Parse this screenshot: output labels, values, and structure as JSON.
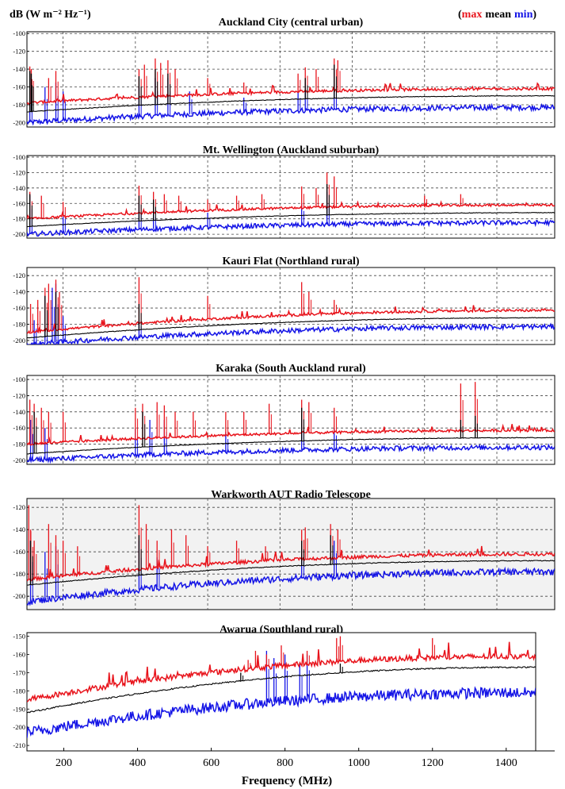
{
  "header": {
    "units": "dB (W m⁻² Hz⁻¹)",
    "legend": {
      "open": "(",
      "max": "max",
      "mean": "mean",
      "min": "min",
      "close": ")"
    },
    "colors": {
      "max": "#e8141c",
      "mean": "#000000",
      "min": "#1414e6"
    }
  },
  "chart_data": [
    {
      "type": "line",
      "title": "Auckland City (central urban)",
      "xlim": [
        100,
        1560
      ],
      "ylim": [
        -205,
        -98
      ],
      "yticks": [
        -100,
        -120,
        -140,
        -160,
        -180,
        -200
      ],
      "grid": true,
      "series": [
        {
          "name": "max",
          "start": -178,
          "end": -162,
          "spikes": [
            [
              108,
              -137
            ],
            [
              112,
              -140
            ],
            [
              160,
              -150
            ],
            [
              180,
              -142
            ],
            [
              410,
              -140
            ],
            [
              425,
              -135
            ],
            [
              455,
              -128
            ],
            [
              470,
              -133
            ],
            [
              490,
              -130
            ],
            [
              510,
              -140
            ],
            [
              600,
              -150
            ],
            [
              700,
              -155
            ],
            [
              850,
              -145
            ],
            [
              870,
              -138
            ],
            [
              900,
              -140
            ],
            [
              950,
              -128
            ],
            [
              960,
              -130
            ]
          ]
        },
        {
          "name": "mean",
          "start": -188,
          "end": -170,
          "spikes": [
            [
              108,
              -142
            ],
            [
              112,
              -145
            ],
            [
              410,
              -148
            ],
            [
              455,
              -140
            ],
            [
              490,
              -145
            ],
            [
              870,
              -150
            ],
            [
              950,
              -135
            ]
          ]
        },
        {
          "name": "min",
          "start": -200,
          "end": -183,
          "spikes": [
            [
              108,
              -150
            ],
            [
              150,
              -160
            ],
            [
              180,
              -155
            ],
            [
              200,
              -165
            ],
            [
              410,
              -160
            ],
            [
              455,
              -150
            ],
            [
              490,
              -150
            ],
            [
              550,
              -165
            ],
            [
              700,
              -172
            ],
            [
              850,
              -165
            ],
            [
              870,
              -155
            ],
            [
              950,
              -140
            ]
          ]
        }
      ]
    },
    {
      "type": "line",
      "title": "Mt. Wellington (Auckland suburban)",
      "xlim": [
        100,
        1560
      ],
      "ylim": [
        -205,
        -98
      ],
      "yticks": [
        -100,
        -120,
        -140,
        -160,
        -180,
        -200
      ],
      "grid": true,
      "series": [
        {
          "name": "max",
          "start": -180,
          "end": -162,
          "spikes": [
            [
              108,
              -145
            ],
            [
              140,
              -150
            ],
            [
              200,
              -158
            ],
            [
              410,
              -137
            ],
            [
              450,
              -145
            ],
            [
              480,
              -148
            ],
            [
              520,
              -150
            ],
            [
              600,
              -155
            ],
            [
              680,
              -150
            ],
            [
              750,
              -148
            ],
            [
              860,
              -138
            ],
            [
              900,
              -140
            ],
            [
              930,
              -120
            ],
            [
              950,
              -125
            ],
            [
              1200,
              -150
            ],
            [
              1300,
              -148
            ]
          ]
        },
        {
          "name": "mean",
          "start": -190,
          "end": -172,
          "spikes": [
            [
              108,
              -148
            ],
            [
              410,
              -150
            ],
            [
              450,
              -155
            ],
            [
              930,
              -135
            ]
          ]
        },
        {
          "name": "min",
          "start": -200,
          "end": -185,
          "spikes": [
            [
              108,
              -150
            ],
            [
              200,
              -170
            ],
            [
              410,
              -160
            ],
            [
              450,
              -170
            ],
            [
              600,
              -172
            ],
            [
              860,
              -160
            ],
            [
              930,
              -145
            ]
          ]
        }
      ]
    },
    {
      "type": "line",
      "title": "Kauri Flat (Northland rural)",
      "xlim": [
        100,
        1560
      ],
      "ylim": [
        -205,
        -110
      ],
      "yticks": [
        -120,
        -140,
        -160,
        -180,
        -200
      ],
      "grid": true,
      "series": [
        {
          "name": "max",
          "start": -190,
          "end": -163,
          "spikes": [
            [
              110,
              -155
            ],
            [
              130,
              -150
            ],
            [
              150,
              -135
            ],
            [
              160,
              -130
            ],
            [
              180,
              -125
            ],
            [
              190,
              -140
            ],
            [
              410,
              -122
            ],
            [
              600,
              -145
            ],
            [
              860,
              -128
            ],
            [
              880,
              -140
            ],
            [
              950,
              -150
            ]
          ]
        },
        {
          "name": "mean",
          "start": -197,
          "end": -172,
          "spikes": [
            [
              150,
              -145
            ],
            [
              180,
              -140
            ],
            [
              410,
              -155
            ]
          ]
        },
        {
          "name": "min",
          "start": -205,
          "end": -183,
          "spikes": [
            [
              120,
              -175
            ],
            [
              150,
              -145
            ],
            [
              170,
              -135
            ],
            [
              180,
              -130
            ],
            [
              200,
              -170
            ],
            [
              410,
              -175
            ]
          ]
        }
      ]
    },
    {
      "type": "line",
      "title": "Karaka (South Auckland rural)",
      "xlim": [
        100,
        1560
      ],
      "ylim": [
        -205,
        -95
      ],
      "yticks": [
        -100,
        -120,
        -140,
        -160,
        -180,
        -200
      ],
      "grid": true,
      "series": [
        {
          "name": "max",
          "start": -180,
          "end": -163,
          "spikes": [
            [
              108,
              -125
            ],
            [
              120,
              -130
            ],
            [
              140,
              -135
            ],
            [
              160,
              -140
            ],
            [
              200,
              -140
            ],
            [
              400,
              -135
            ],
            [
              420,
              -130
            ],
            [
              460,
              -128
            ],
            [
              480,
              -132
            ],
            [
              510,
              -140
            ],
            [
              560,
              -140
            ],
            [
              650,
              -140
            ],
            [
              700,
              -140
            ],
            [
              770,
              -130
            ],
            [
              860,
              -125
            ],
            [
              880,
              -128
            ],
            [
              950,
              -135
            ],
            [
              1300,
              -105
            ],
            [
              1340,
              -103
            ]
          ]
        },
        {
          "name": "mean",
          "start": -192,
          "end": -172,
          "spikes": [
            [
              120,
              -140
            ],
            [
              420,
              -140
            ],
            [
              860,
              -135
            ],
            [
              1300,
              -150
            ],
            [
              1340,
              -145
            ]
          ]
        },
        {
          "name": "min",
          "start": -200,
          "end": -184,
          "spikes": [
            [
              110,
              -150
            ],
            [
              150,
              -160
            ],
            [
              400,
              -160
            ],
            [
              440,
              -150
            ],
            [
              480,
              -150
            ],
            [
              650,
              -165
            ],
            [
              860,
              -150
            ],
            [
              950,
              -160
            ]
          ]
        }
      ]
    },
    {
      "type": "line",
      "title": "Warkworth AUT Radio Telescope",
      "xlim": [
        100,
        1560
      ],
      "ylim": [
        -212,
        -112
      ],
      "yticks": [
        -120,
        -140,
        -160,
        -180,
        -200
      ],
      "grid": true,
      "series": [
        {
          "name": "max",
          "start": -185,
          "end": -162,
          "spikes": [
            [
              105,
              -118
            ],
            [
              110,
              -140
            ],
            [
              120,
              -150
            ],
            [
              160,
              -135
            ],
            [
              180,
              -145
            ],
            [
              200,
              -150
            ],
            [
              240,
              -155
            ],
            [
              410,
              -118
            ],
            [
              430,
              -135
            ],
            [
              460,
              -150
            ],
            [
              500,
              -140
            ],
            [
              540,
              -145
            ],
            [
              600,
              -155
            ],
            [
              680,
              -150
            ],
            [
              760,
              -155
            ],
            [
              860,
              -140
            ],
            [
              870,
              -138
            ],
            [
              940,
              -135
            ],
            [
              960,
              -140
            ]
          ]
        },
        {
          "name": "mean",
          "start": -190,
          "end": -168,
          "spikes": [
            [
              110,
              -150
            ],
            [
              410,
              -145
            ],
            [
              860,
              -150
            ],
            [
              940,
              -145
            ]
          ]
        },
        {
          "name": "min",
          "start": -205,
          "end": -178,
          "spikes": [
            [
              110,
              -150
            ],
            [
              150,
              -160
            ],
            [
              180,
              -155
            ],
            [
              410,
              -150
            ],
            [
              460,
              -165
            ],
            [
              860,
              -155
            ],
            [
              950,
              -150
            ]
          ]
        }
      ]
    },
    {
      "type": "line",
      "title": "Awarua (Southland rural)",
      "xlim": [
        100,
        1480
      ],
      "ylim": [
        -213,
        -148
      ],
      "yticks": [
        -150,
        -160,
        -170,
        -180,
        -190,
        -200,
        -210
      ],
      "grid": false,
      "series": [
        {
          "name": "max",
          "start": -185,
          "end": -161,
          "spikes": [
            [
              650,
              -168
            ],
            [
              700,
              -163
            ],
            [
              720,
              -158
            ],
            [
              750,
              -160
            ],
            [
              790,
              -155
            ],
            [
              860,
              -158
            ],
            [
              940,
              -151
            ],
            [
              950,
              -150
            ],
            [
              1200,
              -151
            ]
          ]
        },
        {
          "name": "mean",
          "start": -192,
          "end": -167,
          "spikes": [
            [
              680,
              -170
            ],
            [
              950,
              -165
            ]
          ]
        },
        {
          "name": "min",
          "start": -203,
          "end": -181,
          "spikes": [
            [
              750,
              -158
            ],
            [
              770,
              -162
            ],
            [
              800,
              -160
            ],
            [
              840,
              -165
            ],
            [
              860,
              -160
            ]
          ]
        }
      ]
    }
  ],
  "x_axis": {
    "label": "Frequency (MHz)",
    "ticks": [
      200,
      400,
      600,
      800,
      1000,
      1200,
      1400
    ]
  }
}
